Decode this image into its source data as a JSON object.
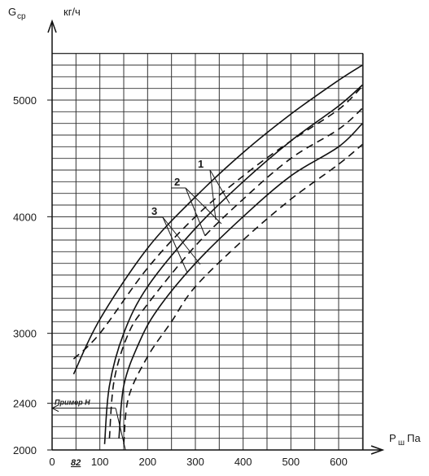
{
  "chart_data": {
    "type": "line",
    "ylabel_symbol": "G",
    "ylabel_sub": "ср",
    "yunit": "кг/ч",
    "xlabel_symbol": "P",
    "xlabel_sub": "ш",
    "xunit": "Па",
    "xlim": [
      0,
      650
    ],
    "ylim": [
      2000,
      5450
    ],
    "grid": true,
    "xticks": [
      "0",
      "100",
      "200",
      "300",
      "400",
      "500",
      "600"
    ],
    "yticks": [
      "2000",
      "2400",
      "3000",
      "4000",
      "5000"
    ],
    "example_label": "Пример Н",
    "example_x_label": "82",
    "example_x": 82,
    "example_y": 2400,
    "curve_labels": [
      "1",
      "2",
      "3"
    ],
    "series": [
      {
        "group": "1",
        "style": "solid",
        "x": [
          45,
          100,
          200,
          300,
          400,
          500,
          600,
          650
        ],
        "y": [
          2650,
          3120,
          3730,
          4170,
          4550,
          4880,
          5170,
          5300
        ]
      },
      {
        "group": "1",
        "style": "dashed",
        "x": [
          45,
          100,
          200,
          300,
          400,
          500,
          600,
          650
        ],
        "y": [
          2780,
          3000,
          3560,
          4000,
          4350,
          4650,
          4920,
          5120
        ]
      },
      {
        "group": "2",
        "style": "solid",
        "x": [
          110,
          120,
          150,
          200,
          300,
          400,
          500,
          600,
          650
        ],
        "y": [
          2050,
          2550,
          3000,
          3400,
          3900,
          4300,
          4650,
          4950,
          5130
        ]
      },
      {
        "group": "2",
        "style": "dashed",
        "x": [
          120,
          130,
          160,
          200,
          300,
          400,
          500,
          600,
          650
        ],
        "y": [
          2100,
          2600,
          3000,
          3250,
          3750,
          4150,
          4500,
          4750,
          4930
        ]
      },
      {
        "group": "3",
        "style": "solid",
        "x": [
          140,
          150,
          180,
          220,
          300,
          400,
          500,
          600,
          650
        ],
        "y": [
          2100,
          2550,
          2900,
          3200,
          3600,
          4000,
          4350,
          4600,
          4800
        ]
      },
      {
        "group": "3",
        "style": "dashed",
        "x": [
          150,
          160,
          200,
          250,
          300,
          400,
          500,
          600,
          650
        ],
        "y": [
          2050,
          2450,
          2800,
          3100,
          3400,
          3800,
          4150,
          4450,
          4620
        ]
      }
    ]
  }
}
